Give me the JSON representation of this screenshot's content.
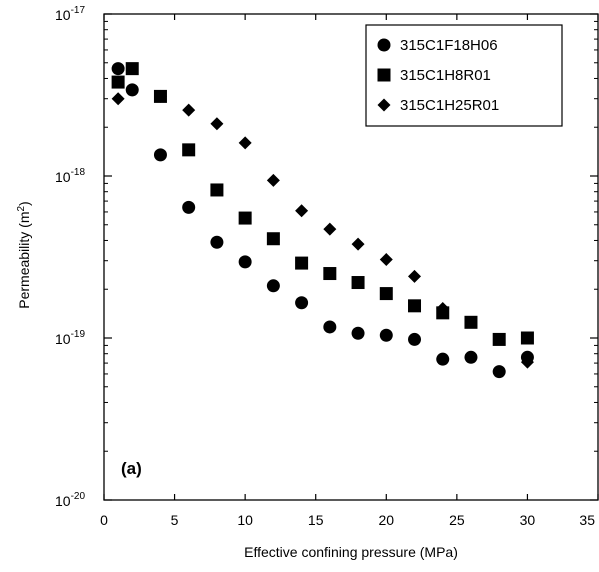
{
  "chart_data": {
    "type": "scatter",
    "xlabel": "Effective confining pressure (MPa)",
    "ylabel_base": "Permeability (m",
    "ylabel_sup": "2",
    "ylabel_end": ")",
    "panel_label": "(a)",
    "xlim": [
      0,
      35
    ],
    "ylim": [
      1e-20,
      1e-17
    ],
    "yscale": "log",
    "grid": false,
    "legend_position": "top-right",
    "x_ticks": [
      0,
      5,
      10,
      15,
      20,
      25,
      30,
      35
    ],
    "y_ticks": [
      {
        "value": 1e-20,
        "base": "10",
        "exp": "-20"
      },
      {
        "value": 1e-19,
        "base": "10",
        "exp": "-19"
      },
      {
        "value": 1e-18,
        "base": "10",
        "exp": "-18"
      },
      {
        "value": 1e-17,
        "base": "10",
        "exp": "-17"
      }
    ],
    "series": [
      {
        "name": "315C1F18H06",
        "marker": "circle",
        "x": [
          1,
          2,
          4,
          6,
          8,
          10,
          12,
          14,
          16,
          18,
          20,
          22,
          24,
          26,
          28,
          30
        ],
        "y": [
          4.6e-18,
          3.4e-18,
          1.35e-18,
          6.4e-19,
          3.9e-19,
          2.95e-19,
          2.1e-19,
          1.65e-19,
          1.17e-19,
          1.07e-19,
          1.04e-19,
          9.8e-20,
          7.4e-20,
          7.6e-20,
          6.2e-20,
          7.6e-20
        ]
      },
      {
        "name": "315C1H8R01",
        "marker": "square",
        "x": [
          1,
          2,
          4,
          6,
          8,
          10,
          12,
          14,
          16,
          18,
          20,
          22,
          24,
          26,
          28,
          30
        ],
        "y": [
          3.8e-18,
          4.6e-18,
          3.1e-18,
          1.45e-18,
          8.2e-19,
          5.5e-19,
          4.1e-19,
          2.9e-19,
          2.5e-19,
          2.2e-19,
          1.88e-19,
          1.58e-19,
          1.43e-19,
          1.25e-19,
          9.8e-20,
          1e-19
        ]
      },
      {
        "name": "315C1H25R01",
        "marker": "diamond",
        "x": [
          1,
          2,
          4,
          6,
          8,
          10,
          12,
          14,
          16,
          18,
          20,
          22,
          24,
          30
        ],
        "y": [
          3e-18,
          3.4e-18,
          3.1e-18,
          2.55e-18,
          2.1e-18,
          1.6e-18,
          9.4e-19,
          6.1e-19,
          4.7e-19,
          3.8e-19,
          3.05e-19,
          2.4e-19,
          1.52e-19,
          7.1e-20
        ]
      }
    ]
  }
}
